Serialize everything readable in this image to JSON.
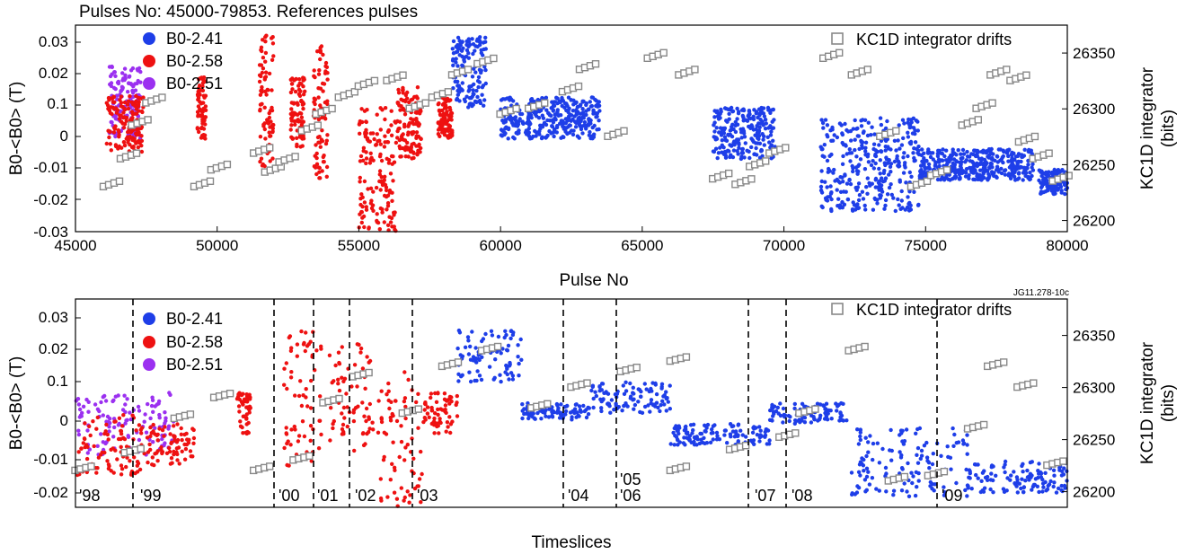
{
  "chart_data": [
    {
      "type": "scatter",
      "title": "Pulses No: 45000-79853. References pulses",
      "xlabel": "Pulse No",
      "ylabel_left": "B0-<B0> (T)",
      "ylabel_right_line1": "KC1D integrator",
      "ylabel_right_line2": "(bits)",
      "xlim": [
        45000,
        80000
      ],
      "ylim_left_labels": [
        "0.03",
        "0.02",
        "0.1",
        "0",
        "-0.01",
        "-0.02",
        "-0.03"
      ],
      "ylim_right": [
        26190,
        26375
      ],
      "x_ticks": [
        45000,
        50000,
        55000,
        60000,
        65000,
        70000,
        75000,
        80000
      ],
      "y2_ticks": [
        26200,
        26250,
        26300,
        26350
      ],
      "legend": [
        "B0-2.41",
        "B0-2.58",
        "B0-2.51"
      ],
      "legend_right": "KC1D integrator drifts",
      "series": [
        {
          "name": "B0-2.51",
          "color": "#9b30f0",
          "clusters": [
            [
              46200,
              47300,
              0.2,
              0.55
            ]
          ]
        },
        {
          "name": "B0-2.58",
          "color": "#ee1111",
          "clusters": [
            [
              46100,
              47400,
              0.34,
              0.62
            ],
            [
              49300,
              49600,
              0.25,
              0.55
            ],
            [
              51500,
              52000,
              0.05,
              0.7
            ],
            [
              52600,
              53100,
              0.25,
              0.6
            ],
            [
              53400,
              53900,
              0.1,
              0.75
            ],
            [
              55000,
              56300,
              0.4,
              1.0
            ],
            [
              56300,
              57200,
              0.3,
              0.65
            ],
            [
              57800,
              58300,
              0.35,
              0.55
            ]
          ]
        },
        {
          "name": "B0-2.41",
          "color": "#1e3ee8",
          "clusters": [
            [
              58300,
              59500,
              0.05,
              0.4
            ],
            [
              60000,
              63500,
              0.35,
              0.55
            ],
            [
              67500,
              69700,
              0.4,
              0.65
            ],
            [
              71300,
              74800,
              0.45,
              0.9
            ],
            [
              74800,
              78800,
              0.6,
              0.75
            ],
            [
              79000,
              80000,
              0.7,
              0.82
            ]
          ]
        },
        {
          "name": "KC1D integrator drifts",
          "color": "#888888",
          "points": [
            [
              46000,
              26230
            ],
            [
              46600,
              26255
            ],
            [
              47000,
              26285
            ],
            [
              47500,
              26305
            ],
            [
              49200,
              26230
            ],
            [
              49800,
              26245
            ],
            [
              51300,
              26260
            ],
            [
              51700,
              26243
            ],
            [
              52200,
              26252
            ],
            [
              53000,
              26280
            ],
            [
              53500,
              26295
            ],
            [
              54300,
              26310
            ],
            [
              55000,
              26320
            ],
            [
              56000,
              26325
            ],
            [
              56800,
              26300
            ],
            [
              57600,
              26310
            ],
            [
              58300,
              26330
            ],
            [
              59200,
              26340
            ],
            [
              60000,
              26295
            ],
            [
              61000,
              26300
            ],
            [
              62200,
              26315
            ],
            [
              62800,
              26335
            ],
            [
              63800,
              26275
            ],
            [
              65200,
              26345
            ],
            [
              66300,
              26330
            ],
            [
              67500,
              26237
            ],
            [
              68300,
              26232
            ],
            [
              68800,
              26248
            ],
            [
              69500,
              26260
            ],
            [
              71400,
              26345
            ],
            [
              72400,
              26330
            ],
            [
              73400,
              26275
            ],
            [
              74500,
              26230
            ],
            [
              75200,
              26240
            ],
            [
              76300,
              26285
            ],
            [
              76800,
              26300
            ],
            [
              77300,
              26330
            ],
            [
              78000,
              26325
            ],
            [
              78300,
              26270
            ],
            [
              78800,
              26255
            ],
            [
              79500,
              26235
            ]
          ]
        }
      ]
    },
    {
      "type": "scatter",
      "code_label": "JG11.278-10c",
      "xlabel": "Timeslices",
      "ylabel_left": "B0-<B0> (T)",
      "ylabel_right_line1": "KC1D integrator",
      "ylabel_right_line2": "(bits)",
      "ylim_left_labels": [
        "0.03",
        "0.02",
        "0.1",
        "0",
        "-0.01",
        "-0.02"
      ],
      "y2_ticks": [
        26200,
        26250,
        26300,
        26350
      ],
      "legend": [
        "B0-2.41",
        "B0-2.58",
        "B0-2.51"
      ],
      "legend_right": "KC1D integrator drifts",
      "year_labels": [
        "'98",
        "'99",
        "'00",
        "'01",
        "'02",
        "'03",
        "'04",
        "'05",
        "'06",
        "'07",
        "'08",
        "'09"
      ],
      "series": [
        {
          "name": "B0-2.51",
          "color": "#9b30f0",
          "clusters": [
            [
              0.0,
              0.1,
              0.45,
              0.75
            ]
          ]
        },
        {
          "name": "B0-2.58",
          "color": "#ee1111",
          "clusters": [
            [
              0.0,
              0.07,
              0.55,
              0.85
            ],
            [
              0.07,
              0.12,
              0.6,
              0.8
            ],
            [
              0.163,
              0.177,
              0.45,
              0.65
            ],
            [
              0.21,
              0.25,
              0.15,
              0.8
            ],
            [
              0.255,
              0.3,
              0.2,
              0.75
            ],
            [
              0.305,
              0.35,
              0.35,
              1.0
            ],
            [
              0.35,
              0.385,
              0.45,
              0.65
            ]
          ]
        },
        {
          "name": "B0-2.41",
          "color": "#1e3ee8",
          "clusters": [
            [
              0.385,
              0.45,
              0.15,
              0.4
            ],
            [
              0.45,
              0.52,
              0.5,
              0.58
            ],
            [
              0.52,
              0.6,
              0.4,
              0.55
            ],
            [
              0.6,
              0.7,
              0.6,
              0.7
            ],
            [
              0.7,
              0.78,
              0.5,
              0.6
            ],
            [
              0.78,
              0.9,
              0.62,
              0.95
            ],
            [
              0.9,
              1.0,
              0.78,
              0.93
            ]
          ]
        },
        {
          "name": "KC1D integrator drifts",
          "color": "#888888",
          "points": [
            [
              0.0,
              26220
            ],
            [
              0.05,
              26237
            ],
            [
              0.1,
              26270
            ],
            [
              0.14,
              26290
            ],
            [
              0.18,
              26220
            ],
            [
              0.22,
              26230
            ],
            [
              0.25,
              26285
            ],
            [
              0.28,
              26310
            ],
            [
              0.33,
              26275
            ],
            [
              0.37,
              26320
            ],
            [
              0.41,
              26335
            ],
            [
              0.46,
              26280
            ],
            [
              0.5,
              26300
            ],
            [
              0.55,
              26315
            ],
            [
              0.6,
              26325
            ],
            [
              0.6,
              26220
            ],
            [
              0.66,
              26240
            ],
            [
              0.71,
              26252
            ],
            [
              0.73,
              26275
            ],
            [
              0.78,
              26335
            ],
            [
              0.82,
              26210
            ],
            [
              0.86,
              26215
            ],
            [
              0.9,
              26260
            ],
            [
              0.92,
              26320
            ],
            [
              0.95,
              26300
            ],
            [
              0.98,
              26225
            ]
          ]
        }
      ]
    }
  ]
}
